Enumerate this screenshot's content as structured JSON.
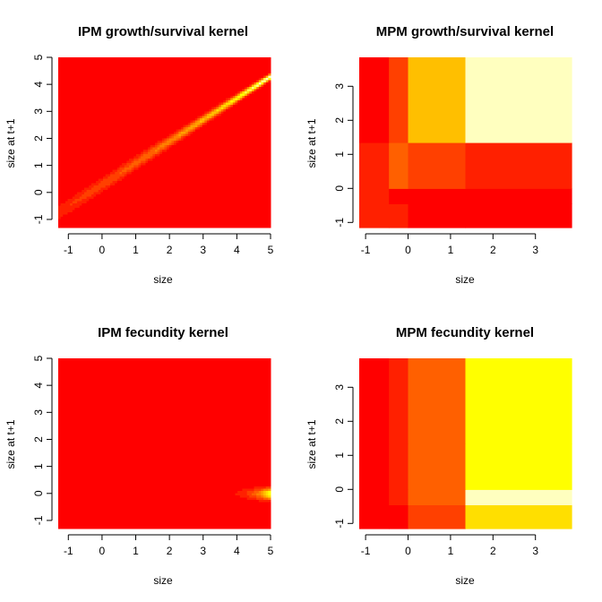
{
  "colors": {
    "heat": [
      "#FF0000",
      "#FF2000",
      "#FF4000",
      "#FF6000",
      "#FF8000",
      "#FFA000",
      "#FFBF00",
      "#FFDF00",
      "#FFFF00",
      "#FFFF40",
      "#FFFF80",
      "#FFFFBF"
    ],
    "axis": "#000000"
  },
  "chart_data": [
    {
      "id": "ipm-growth",
      "type": "heatmap",
      "kind": "continuous-growth",
      "title": "IPM growth/survival kernel",
      "xlabel": "size",
      "ylabel": "size at t+1",
      "xlim": [
        -1.3,
        5.0
      ],
      "ylim": [
        -1.3,
        5.0
      ],
      "xticks": [
        -1,
        0,
        1,
        2,
        3,
        4,
        5
      ],
      "yticks": [
        -1,
        0,
        1,
        2,
        3,
        4,
        5
      ],
      "model": {
        "slope": 0.8,
        "intercept": 0.3,
        "sd_min": 0.07,
        "sd_max": 0.22,
        "survival_min": 0.45,
        "survival_max": 1.0,
        "max_level": 11
      }
    },
    {
      "id": "mpm-growth",
      "type": "heatmap",
      "kind": "matrix",
      "title": "MPM growth/survival kernel",
      "xlabel": "size",
      "ylabel": "size at t+1",
      "xlim": [
        -1.15,
        3.85
      ],
      "ylim": [
        -1.15,
        3.85
      ],
      "xticks": [
        -1,
        0,
        1,
        2,
        3
      ],
      "yticks": [
        -1,
        0,
        1,
        2,
        3
      ],
      "x_breaks": [
        -1.15,
        -0.45,
        0.0,
        1.35,
        3.85
      ],
      "y_breaks": [
        -1.15,
        -0.45,
        0.0,
        1.35,
        3.85
      ],
      "cell_levels": [
        [
          1,
          1,
          0,
          0
        ],
        [
          1,
          0,
          0,
          0
        ],
        [
          1,
          3,
          2,
          1
        ],
        [
          0,
          2,
          6,
          11
        ]
      ]
    },
    {
      "id": "ipm-fecundity",
      "type": "heatmap",
      "kind": "continuous-fecundity",
      "title": "IPM fecundity kernel",
      "xlabel": "size",
      "ylabel": "size at t+1",
      "xlim": [
        -1.3,
        5.0
      ],
      "ylim": [
        -1.3,
        5.0
      ],
      "xticks": [
        -1,
        0,
        1,
        2,
        3,
        4,
        5
      ],
      "yticks": [
        -1,
        0,
        1,
        2,
        3,
        4,
        5
      ],
      "model": {
        "recruit_mean": 0.0,
        "recruit_sd": 0.15,
        "fecundity_rate": 2.2,
        "max_level": 8
      }
    },
    {
      "id": "mpm-fecundity",
      "type": "heatmap",
      "kind": "matrix",
      "title": "MPM fecundity kernel",
      "xlabel": "size",
      "ylabel": "size at t+1",
      "xlim": [
        -1.15,
        3.85
      ],
      "ylim": [
        -1.15,
        3.85
      ],
      "xticks": [
        -1,
        0,
        1,
        2,
        3
      ],
      "yticks": [
        -1,
        0,
        1,
        2,
        3
      ],
      "x_breaks": [
        -1.15,
        -0.45,
        0.0,
        1.35,
        3.85
      ],
      "y_breaks": [
        -1.15,
        -0.45,
        0.0,
        1.35,
        3.85
      ],
      "cell_levels": [
        [
          0,
          0,
          2,
          7
        ],
        [
          0,
          1,
          3,
          11
        ],
        [
          0,
          1,
          3,
          8
        ],
        [
          0,
          1,
          3,
          8
        ]
      ]
    }
  ]
}
